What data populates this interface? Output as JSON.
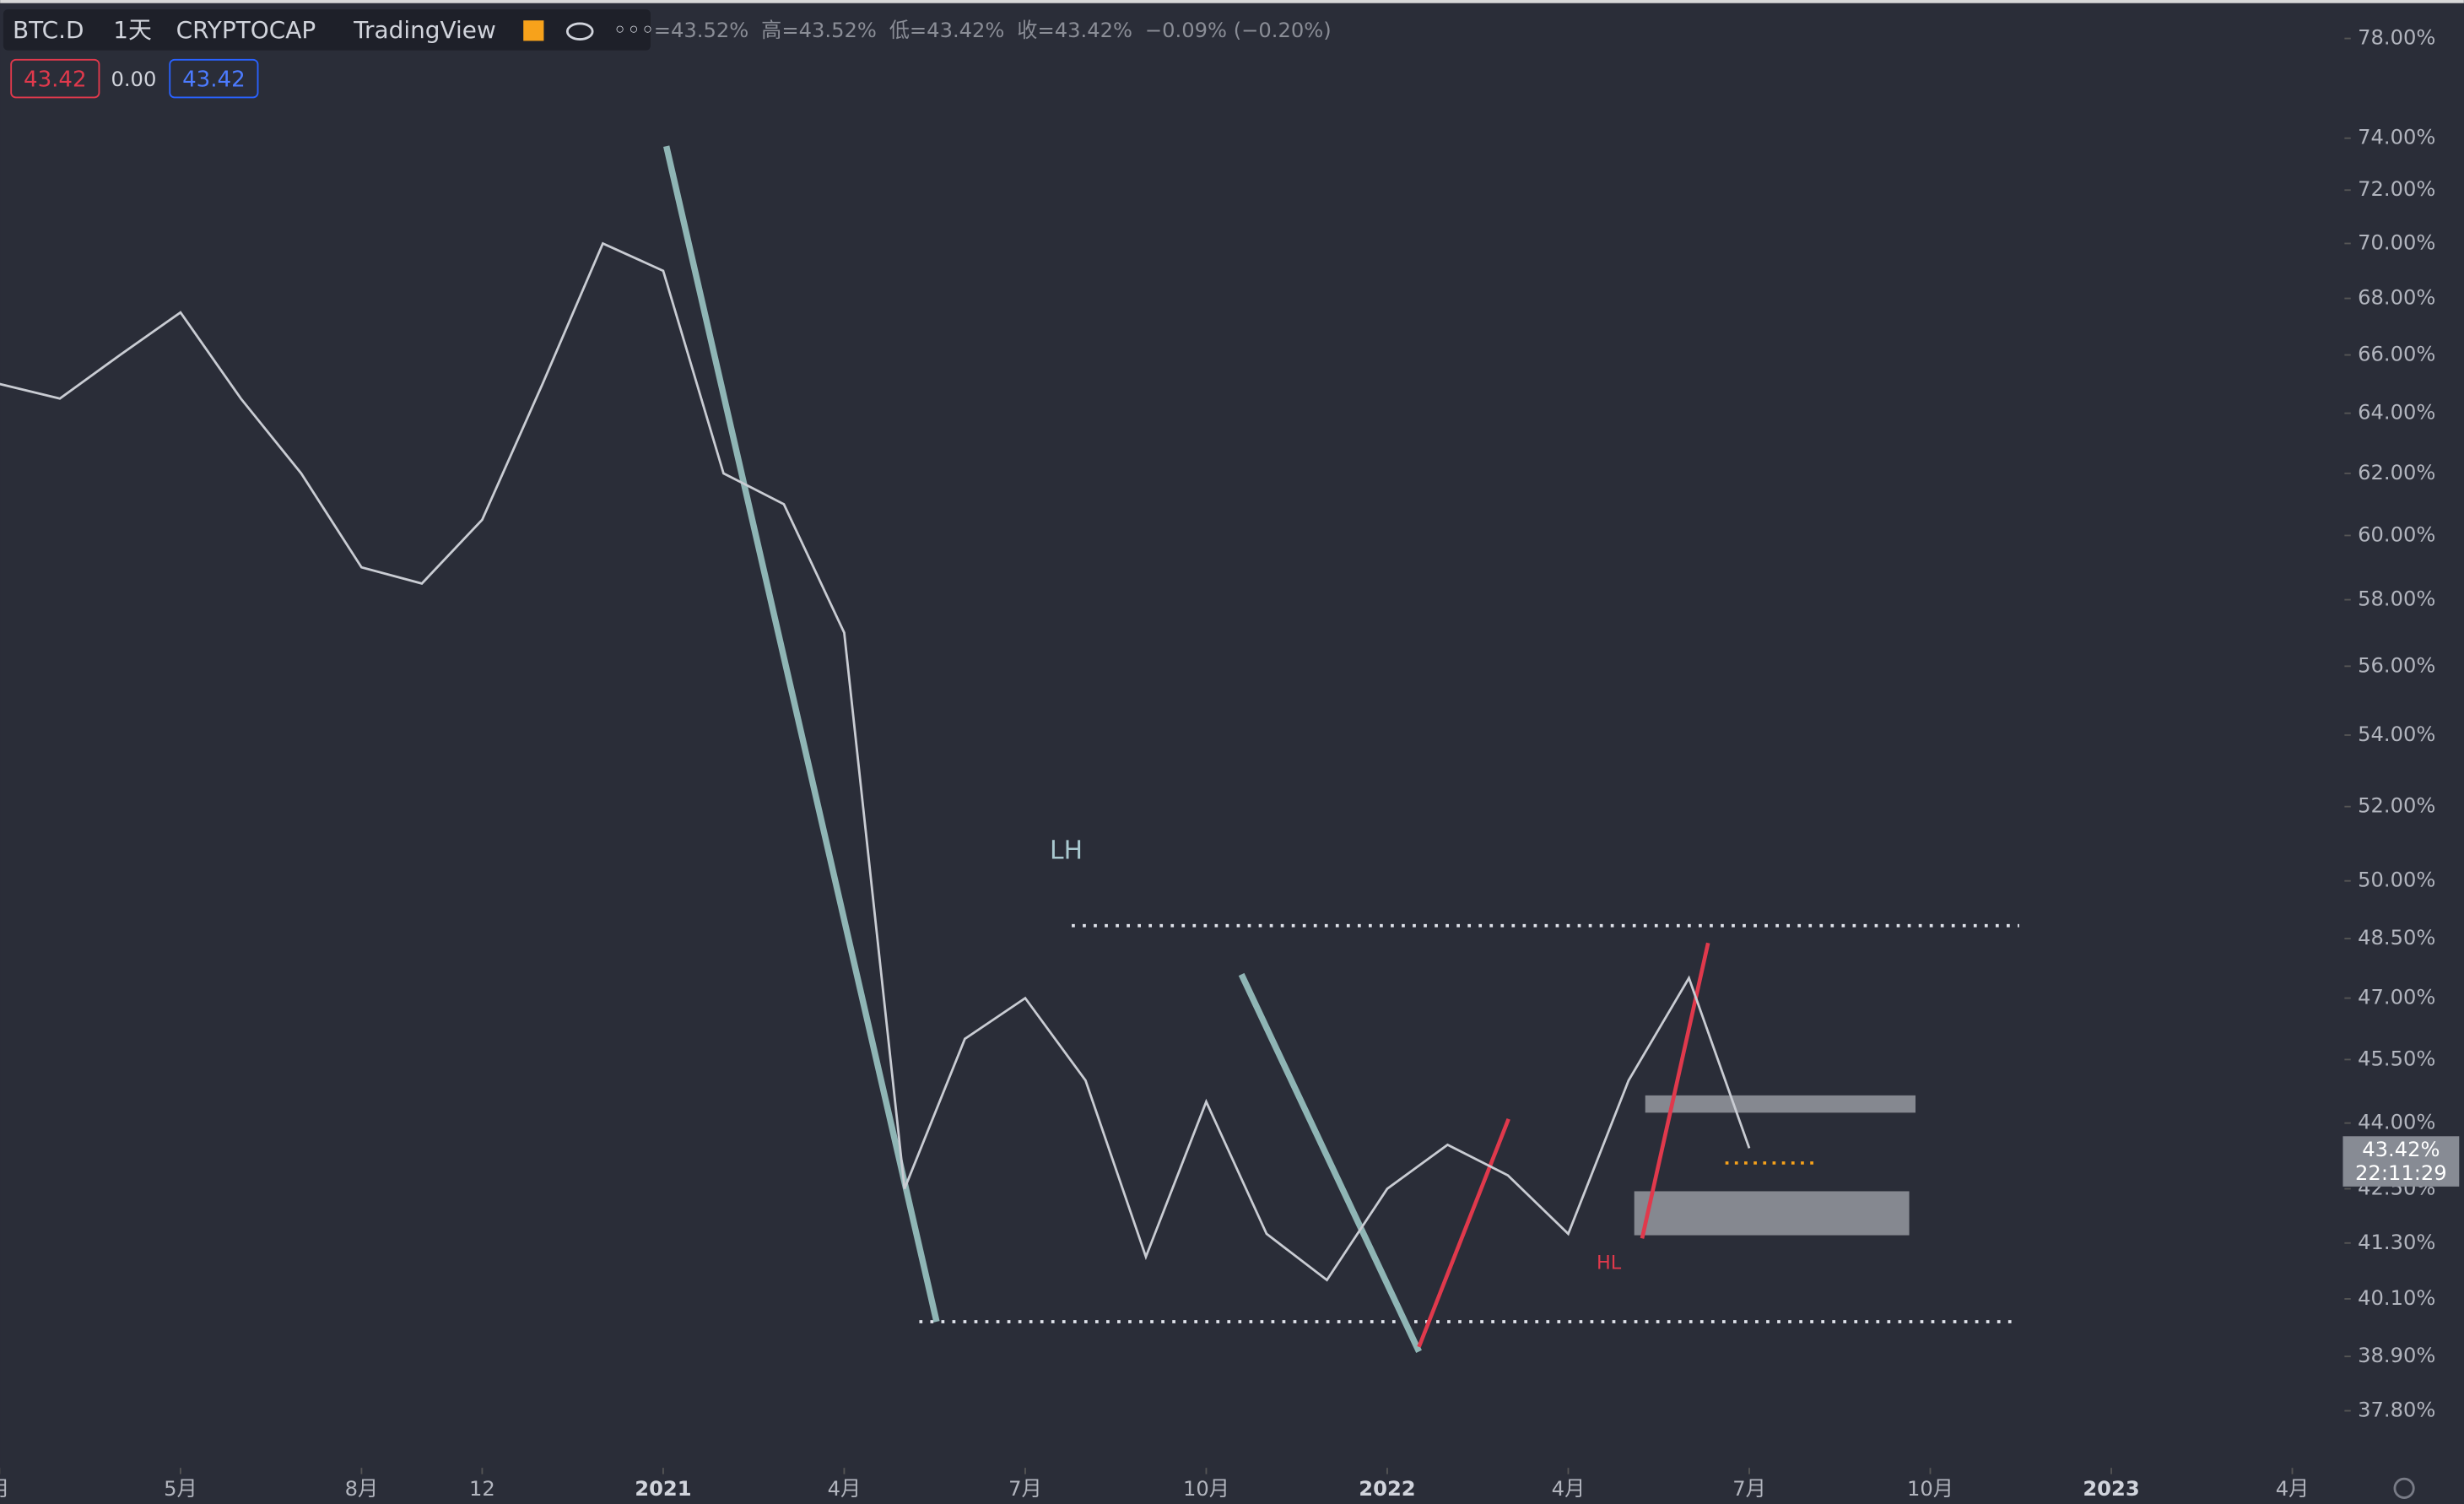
{
  "header": {
    "symbol": "BTC.D",
    "interval": "1天",
    "exchange": "CRYPTOCAP",
    "source": "TradingView",
    "ohlc": [
      "=43.52%",
      "高=43.52%",
      "低=43.42%",
      "收=43.42%",
      "−0.09% (−0.20%)"
    ],
    "buy": "43.42",
    "spread": "0.00",
    "sell": "43.42",
    "last_price": "43.42%",
    "countdown": "22:11:29"
  },
  "chart_data": {
    "type": "line",
    "log_scale": true,
    "color": "#c9ccd3",
    "x": [
      "2020-02",
      "2020-03",
      "2020-04",
      "2020-05",
      "2020-06",
      "2020-07",
      "2020-08",
      "2020-09",
      "2020-10",
      "2020-11",
      "2020-12",
      "2021-01",
      "2021-02",
      "2021-03",
      "2021-04",
      "2021-05",
      "2021-06",
      "2021-07",
      "2021-08",
      "2021-09",
      "2021-10",
      "2021-11",
      "2021-12",
      "2022-01",
      "2022-02",
      "2022-03",
      "2022-04",
      "2022-05",
      "2022-06",
      "2022-07"
    ],
    "values": [
      65,
      64.5,
      66,
      67.5,
      64.5,
      62,
      59,
      58.5,
      60.5,
      65,
      70,
      69,
      62,
      61,
      57,
      42.5,
      46,
      47,
      45,
      41,
      44.5,
      41.5,
      40.5,
      42.5,
      43.5,
      42.8,
      41.5,
      45,
      47.5,
      43.42
    ],
    "ylim": [
      36.8,
      79.6
    ],
    "yticks": [
      {
        "value": 78,
        "label": "78.00%"
      },
      {
        "value": 74,
        "label": "74.00%"
      },
      {
        "value": 72,
        "label": "72.00%"
      },
      {
        "value": 70,
        "label": "70.00%"
      },
      {
        "value": 68,
        "label": "68.00%"
      },
      {
        "value": 66,
        "label": "66.00%"
      },
      {
        "value": 64,
        "label": "64.00%"
      },
      {
        "value": 62,
        "label": "62.00%"
      },
      {
        "value": 60,
        "label": "60.00%"
      },
      {
        "value": 58,
        "label": "58.00%"
      },
      {
        "value": 56,
        "label": "56.00%"
      },
      {
        "value": 54,
        "label": "54.00%"
      },
      {
        "value": 52,
        "label": "52.00%"
      },
      {
        "value": 50,
        "label": "50.00%"
      },
      {
        "value": 48.5,
        "label": "48.50%"
      },
      {
        "value": 47,
        "label": "47.00%"
      },
      {
        "value": 45.5,
        "label": "45.50%"
      },
      {
        "value": 44,
        "label": "44.00%"
      },
      {
        "value": 42.5,
        "label": "42.50%"
      },
      {
        "value": 41.3,
        "label": "41.30%"
      },
      {
        "value": 40.1,
        "label": "40.10%"
      },
      {
        "value": 38.9,
        "label": "38.90%"
      },
      {
        "value": 37.8,
        "label": "37.80%"
      }
    ],
    "xticks": [
      {
        "value": "2020-02",
        "label": "月"
      },
      {
        "value": "2020-05",
        "label": "5月"
      },
      {
        "value": "2020-08",
        "label": "8月"
      },
      {
        "value": "2020-10",
        "label": "12"
      },
      {
        "value": "2021-01",
        "label": "2021"
      },
      {
        "value": "2021-04",
        "label": "4月"
      },
      {
        "value": "2021-07",
        "label": "7月"
      },
      {
        "value": "2021-10",
        "label": "10月"
      },
      {
        "value": "2022-01",
        "label": "2022"
      },
      {
        "value": "2022-04",
        "label": "4月"
      },
      {
        "value": "2022-07",
        "label": "7月"
      },
      {
        "value": "2022-10",
        "label": "10月"
      },
      {
        "value": "2023-01",
        "label": "2023"
      },
      {
        "value": "2023-04",
        "label": "4月"
      }
    ],
    "annotations": [
      "LH",
      "HL"
    ]
  }
}
